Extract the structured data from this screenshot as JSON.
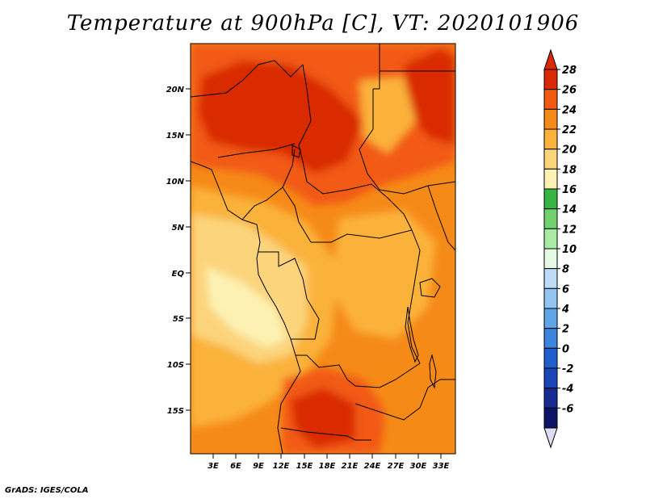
{
  "title": "Temperature at 900hPa [C], VT: 2020101906",
  "credit": "GrADS: IGES/COLA",
  "axes": {
    "lon_ticks": [
      "3E",
      "6E",
      "9E",
      "12E",
      "15E",
      "18E",
      "21E",
      "24E",
      "27E",
      "30E",
      "33E"
    ],
    "lat_ticks": [
      "20N",
      "15N",
      "10N",
      "5N",
      "EQ",
      "5S",
      "10S",
      "15S"
    ]
  },
  "colorbar": {
    "labels": [
      "28",
      "26",
      "24",
      "22",
      "20",
      "18",
      "16",
      "14",
      "12",
      "10",
      "8",
      "6",
      "4",
      "2",
      "0",
      "-2",
      "-4",
      "-6"
    ],
    "colors": [
      "#d92a05",
      "#f25a12",
      "#f68a18",
      "#fbb23a",
      "#fcd47c",
      "#fdf2b3",
      "#36b545",
      "#6fd26e",
      "#a9eba4",
      "#e6f9e2",
      "#bedcf8",
      "#93c4f2",
      "#5fa5e8",
      "#3a85dd",
      "#1f5fcc",
      "#1b45b7",
      "#152c92",
      "#0d1566"
    ],
    "over_color": "#d92a05",
    "under_color": "#dcdcf4"
  },
  "map": {
    "field_colors": {
      "c28": "#d92a05",
      "c26": "#f25a12",
      "c24": "#f68a18",
      "c22": "#fbb23a",
      "c20": "#fcd47c",
      "c18": "#fdf2b3"
    }
  }
}
